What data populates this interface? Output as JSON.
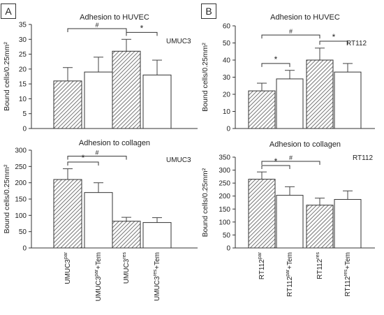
{
  "panels": [
    {
      "label": "A"
    },
    {
      "label": "B"
    }
  ],
  "chart_data": [
    {
      "type": "bar",
      "panel": "A",
      "title": "Adhesion to HUVEC",
      "cell_line": "UMUC3",
      "ylabel": "Bound cells/0.25mm²",
      "ylim": [
        0,
        35
      ],
      "yticks": [
        0,
        5,
        10,
        15,
        20,
        25,
        30,
        35
      ],
      "categories": [
        "UMUC3par",
        "UMUC3par+Tem",
        "UMUC3res",
        "UMUC3res+Tem"
      ],
      "values": [
        16,
        19,
        26,
        18
      ],
      "errors": [
        4.5,
        5,
        4,
        5
      ],
      "hatched": [
        true,
        false,
        true,
        false
      ],
      "annotations": [
        {
          "from": 0,
          "to": 2,
          "text": "#"
        },
        {
          "from": 2,
          "to": 3,
          "text": "*"
        }
      ]
    },
    {
      "type": "bar",
      "panel": "A",
      "title": "Adhesion to collagen",
      "cell_line": "UMUC3",
      "ylabel": "Bound cells/0.25mm²",
      "ylim": [
        0,
        300
      ],
      "yticks": [
        0,
        50,
        100,
        150,
        200,
        250,
        300
      ],
      "categories": [
        "UMUC3par",
        "UMUC3par+Tem",
        "UMUC3res",
        "UMUC3res+Tem"
      ],
      "tick_labels": [
        {
          "base": "UMUC3",
          "sup": "par",
          "suffix": ""
        },
        {
          "base": "UMUC3",
          "sup": "par",
          "suffix": "+Tem"
        },
        {
          "base": "UMUC3",
          "sup": "res",
          "suffix": ""
        },
        {
          "base": "UMUC3",
          "sup": "res",
          "suffix": "+Tem"
        }
      ],
      "values": [
        210,
        170,
        82,
        78
      ],
      "errors": [
        33,
        30,
        12,
        15
      ],
      "hatched": [
        true,
        false,
        true,
        false
      ],
      "annotations": [
        {
          "from": 0,
          "to": 2,
          "text": "#"
        },
        {
          "from": 0,
          "to": 1,
          "text": "*"
        }
      ]
    },
    {
      "type": "bar",
      "panel": "B",
      "title": "Adhesion to HUVEC",
      "cell_line": "RT112",
      "ylabel": "Bound cells/0.25mm²",
      "ylim": [
        0,
        60
      ],
      "yticks": [
        0,
        10,
        20,
        30,
        40,
        50,
        60
      ],
      "categories": [
        "RT112par",
        "RT112par+Tem",
        "RT112res",
        "RT112res+Tem"
      ],
      "values": [
        22,
        29,
        40,
        33
      ],
      "errors": [
        4.5,
        5,
        7,
        5
      ],
      "hatched": [
        true,
        false,
        true,
        false
      ],
      "annotations": [
        {
          "from": 0,
          "to": 2,
          "text": "#"
        },
        {
          "from": 0,
          "to": 1,
          "text": "*"
        },
        {
          "from": 2,
          "to": 3,
          "text": "*"
        }
      ]
    },
    {
      "type": "bar",
      "panel": "B",
      "title": "Adhesion to collagen",
      "cell_line": "RT112",
      "ylabel": "Bound cells/0.25mm²",
      "ylim": [
        0,
        350
      ],
      "yticks": [
        0,
        50,
        100,
        150,
        200,
        250,
        300,
        350
      ],
      "categories": [
        "RT112par",
        "RT112par+Tem",
        "RT112res",
        "RT112res+Tem"
      ],
      "tick_labels": [
        {
          "base": "RT112",
          "sup": "par",
          "suffix": ""
        },
        {
          "base": "RT112",
          "sup": "par",
          "suffix": "+Tem"
        },
        {
          "base": "RT112",
          "sup": "res",
          "suffix": ""
        },
        {
          "base": "RT112",
          "sup": "res",
          "suffix": "+Tem"
        }
      ],
      "values": [
        265,
        203,
        165,
        187
      ],
      "errors": [
        28,
        33,
        27,
        33
      ],
      "hatched": [
        true,
        false,
        true,
        false
      ],
      "annotations": [
        {
          "from": 0,
          "to": 2,
          "text": "#"
        },
        {
          "from": 0,
          "to": 1,
          "text": "*"
        }
      ]
    }
  ]
}
